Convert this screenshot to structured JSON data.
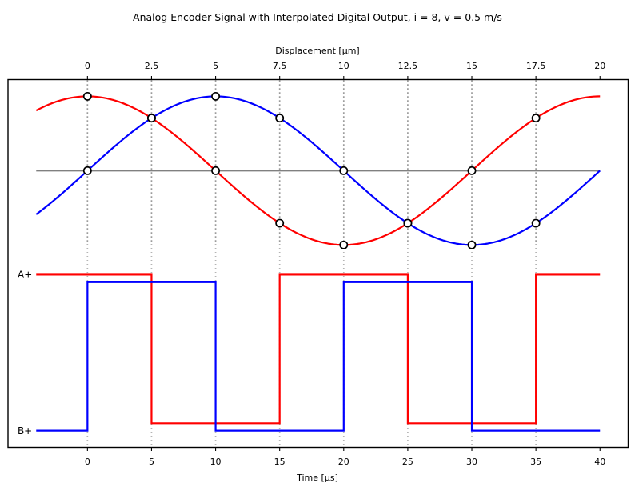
{
  "chart_data": {
    "type": "line",
    "title": "Analog Encoder Signal with Interpolated Digital Output, i = 8, v = 0.5 m/s",
    "top_axis": {
      "label": "Displacement [μm]",
      "ticks": [
        0,
        2.5,
        5,
        7.5,
        10,
        12.5,
        15,
        17.5,
        20
      ],
      "time_per_unit": 2
    },
    "bottom_axis": {
      "label": "Time [μs]",
      "ticks": [
        0,
        5,
        10,
        15,
        20,
        25,
        30,
        35,
        40
      ]
    },
    "xlim": [
      -6.2,
      42.2
    ],
    "ylim": [
      -3.725,
      1.225
    ],
    "t_range": [
      -4,
      40
    ],
    "grid": {
      "times": [
        0,
        5,
        10,
        15,
        20,
        25,
        30,
        35
      ],
      "style": "dotted",
      "color": "#9b9b9b"
    },
    "zero_line": {
      "y": 0,
      "color": "#808080"
    },
    "analog_series": [
      {
        "name": "analog-channel-a-cosine",
        "color": "#ff0000",
        "amplitude": 1,
        "period_us": 40,
        "phase": "cos"
      },
      {
        "name": "analog-channel-b-sine",
        "color": "#0000ff",
        "amplitude": 1,
        "period_us": 40,
        "phase": "sin"
      }
    ],
    "markers": {
      "times": [
        0,
        5,
        10,
        15,
        20,
        25,
        30,
        35
      ],
      "red_values": [
        1,
        0.707,
        0,
        -0.707,
        -1,
        -0.707,
        0,
        0.707
      ],
      "blue_values": [
        0,
        0.707,
        1,
        0.707,
        0,
        -0.707,
        -1,
        -0.707
      ],
      "style": {
        "fill": "#ffffff",
        "edge": "#000000"
      }
    },
    "digital_series": [
      {
        "label": "A+",
        "color": "#ff0000",
        "high": -1.4,
        "low": -3.4,
        "initial": "high",
        "toggle_times": [
          5,
          15,
          25,
          35
        ]
      },
      {
        "label": "B+",
        "color": "#0000ff",
        "high": -1.5,
        "low": -3.5,
        "initial": "low",
        "toggle_times": [
          0,
          10,
          20,
          30
        ]
      }
    ]
  }
}
